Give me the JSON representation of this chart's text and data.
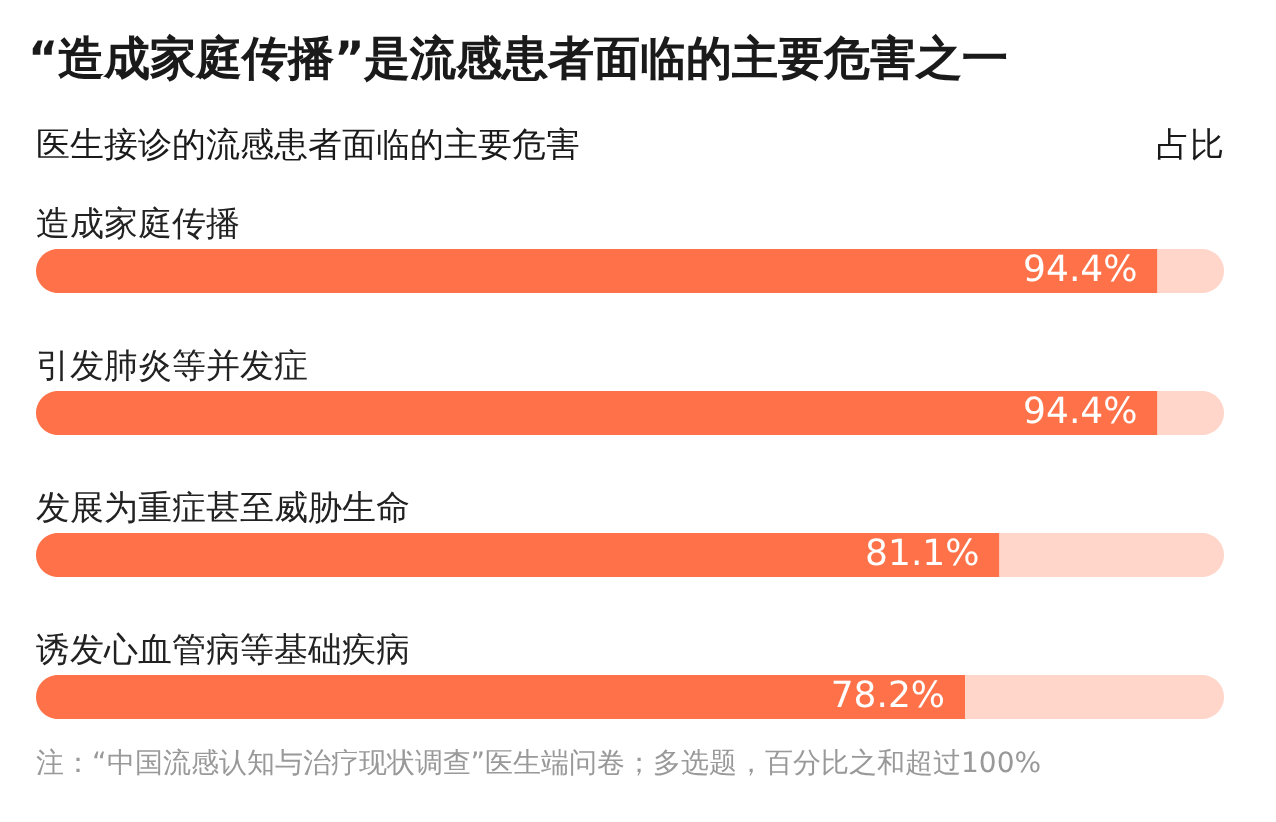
{
  "chart_data": {
    "type": "bar",
    "orientation": "horizontal",
    "stacked": true,
    "title": "“造成家庭传播”是流感患者面临的主要危害之一",
    "subtitle": "医生接诊的流感患者面临的主要危害",
    "xlabel": "占比",
    "categories": [
      "造成家庭传播",
      "引发肺炎等并发症",
      "发展为重症甚至威胁生命",
      "诱发心血管病等基础疾病"
    ],
    "series": [
      {
        "color": "#ff7249",
        "values": [
          94.4,
          94.4,
          81.1,
          78.2
        ],
        "value_labels": [
          "94.4%",
          "94.4%",
          "81.1%",
          "78.2%"
        ]
      },
      {
        "color": "#ffd6c9",
        "values": [
          5.6,
          5.6,
          18.9,
          21.8
        ]
      }
    ],
    "xlim": [
      0,
      100
    ],
    "annotations": [
      "注：“中国流感认知与治疗现状调查”医生端问卷；多选题，百分比之和超过100%"
    ]
  }
}
